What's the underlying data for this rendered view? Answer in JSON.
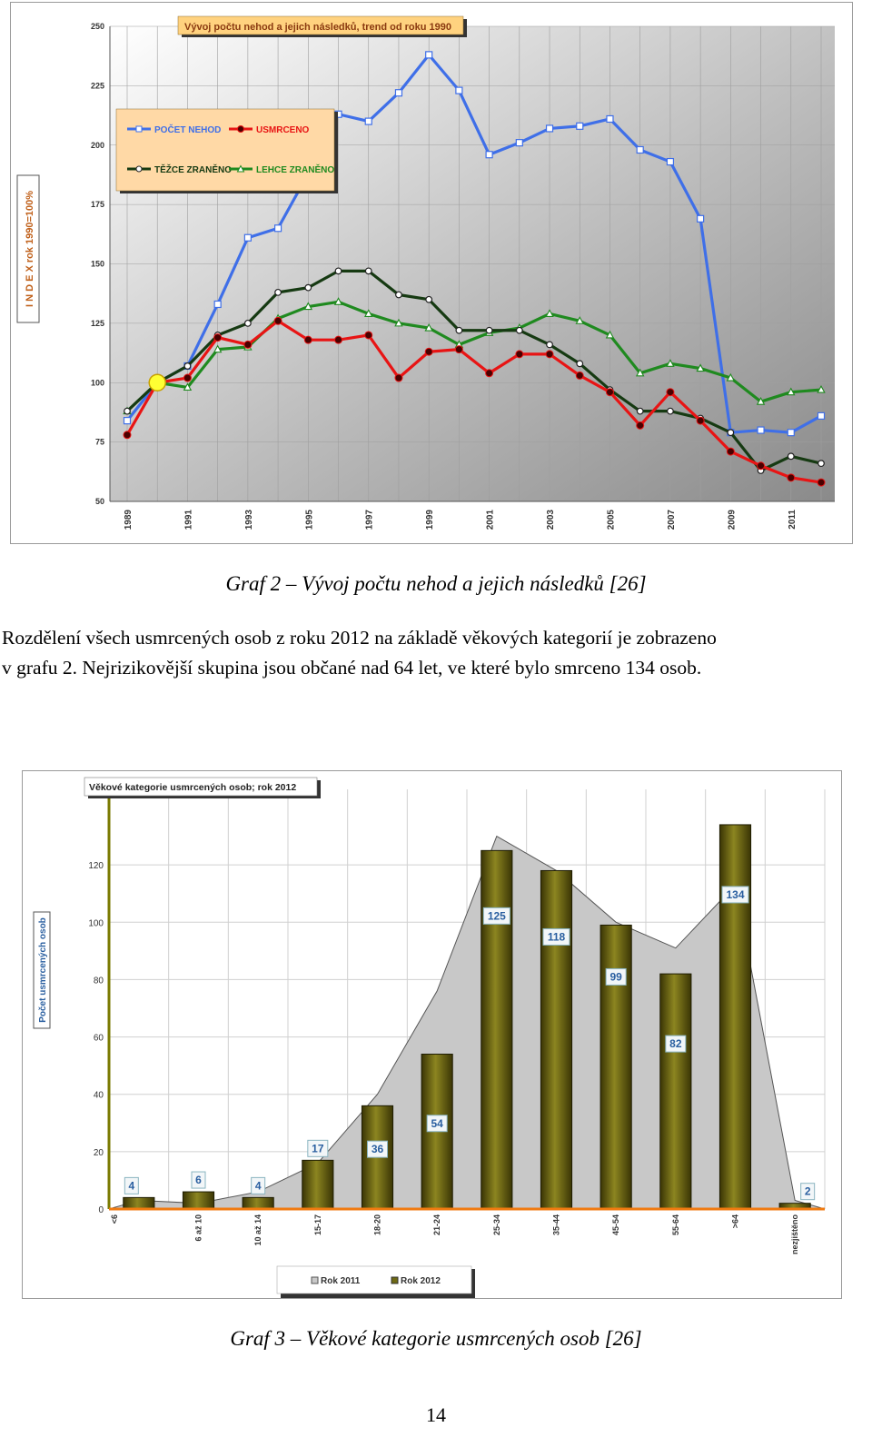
{
  "chart_data": [
    {
      "type": "line",
      "title": "Vývoj počtu nehod a jejich následků, trend od roku 1990",
      "ylabel": "I N D E X rok 1990=100%",
      "xlabel": "",
      "ylim": [
        50,
        250
      ],
      "yticks": [
        50,
        75,
        100,
        125,
        150,
        175,
        200,
        225,
        250
      ],
      "x": [
        1989,
        1990,
        1991,
        1992,
        1993,
        1994,
        1995,
        1996,
        1997,
        1998,
        1999,
        2000,
        2001,
        2002,
        2003,
        2004,
        2005,
        2006,
        2007,
        2008,
        2009,
        2010,
        2011,
        2012
      ],
      "xtick_labels": [
        "1989",
        "1991",
        "1993",
        "1995",
        "1997",
        "1999",
        "2001",
        "2003",
        "2005",
        "2007",
        "2009",
        "2011"
      ],
      "grid": true,
      "legend": "top-left",
      "series": [
        {
          "name": "POČET NEHOD",
          "color": "#3f6fe8",
          "marker": "square",
          "values": [
            84,
            100,
            107,
            133,
            161,
            165,
            188,
            213,
            210,
            222,
            238,
            223,
            196,
            201,
            207,
            208,
            211,
            198,
            193,
            169,
            79,
            80,
            79,
            86
          ]
        },
        {
          "name": "USMRCENO",
          "color": "#e81414",
          "marker": "dot",
          "values": [
            78,
            100,
            102,
            119,
            116,
            126,
            118,
            118,
            120,
            102,
            113,
            114,
            104,
            112,
            112,
            103,
            96,
            82,
            96,
            84,
            71,
            65,
            60,
            58
          ]
        },
        {
          "name": "TĚŽCE ZRANĚNO",
          "color": "#163a12",
          "marker": "circle",
          "values": [
            88,
            100,
            107,
            120,
            125,
            138,
            140,
            147,
            147,
            137,
            135,
            122,
            122,
            122,
            116,
            108,
            97,
            88,
            88,
            85,
            79,
            63,
            69,
            66
          ]
        },
        {
          "name": "LEHCE ZRANĚNO",
          "color": "#1f8a1f",
          "marker": "triangle",
          "values": [
            88,
            100,
            98,
            114,
            115,
            127,
            132,
            134,
            129,
            125,
            123,
            116,
            121,
            123,
            129,
            126,
            120,
            104,
            108,
            106,
            102,
            92,
            96,
            97
          ]
        }
      ]
    },
    {
      "type": "bar",
      "title": "Věkové kategorie usmrcených osob;  rok  2012",
      "ylabel": "Počet usmrcených osob",
      "xlabel": "",
      "ylim": [
        0,
        140
      ],
      "yticks": [
        0,
        20,
        40,
        60,
        80,
        100,
        120
      ],
      "categories": [
        "<6",
        "6 až 10",
        "10 až 14",
        "15-17",
        "18-20",
        "21-24",
        "25-34",
        "35-44",
        "45-54",
        "55-64",
        ">64",
        "nezjištěno"
      ],
      "grid": true,
      "legend": "bottom",
      "series": [
        {
          "name": "Rok 2011",
          "color": "#c8c8c8",
          "type": "area",
          "values": [
            3,
            2,
            6,
            16,
            40,
            76,
            130,
            118,
            100,
            91,
            113,
            3
          ]
        },
        {
          "name": "Rok 2012",
          "color": "#6e6914",
          "type": "bar",
          "values": [
            4,
            6,
            4,
            17,
            36,
            54,
            125,
            118,
            99,
            82,
            134,
            2
          ]
        }
      ]
    }
  ],
  "captions": {
    "graf2": "Graf 2 – Vývoj počtu nehod a jejich následků [26]",
    "graf3": "Graf 3 – Věkové kategorie usmrcených osob [26]"
  },
  "paragraph": {
    "line1": "Rozdělení všech usmrcených osob z roku 2012 na základě věkových kategorií je zobrazeno",
    "line2": "v grafu 2. Nejrizikovější skupina jsou občané nad 64 let, ve které bylo smrceno 134 osob."
  },
  "page_number": "14"
}
